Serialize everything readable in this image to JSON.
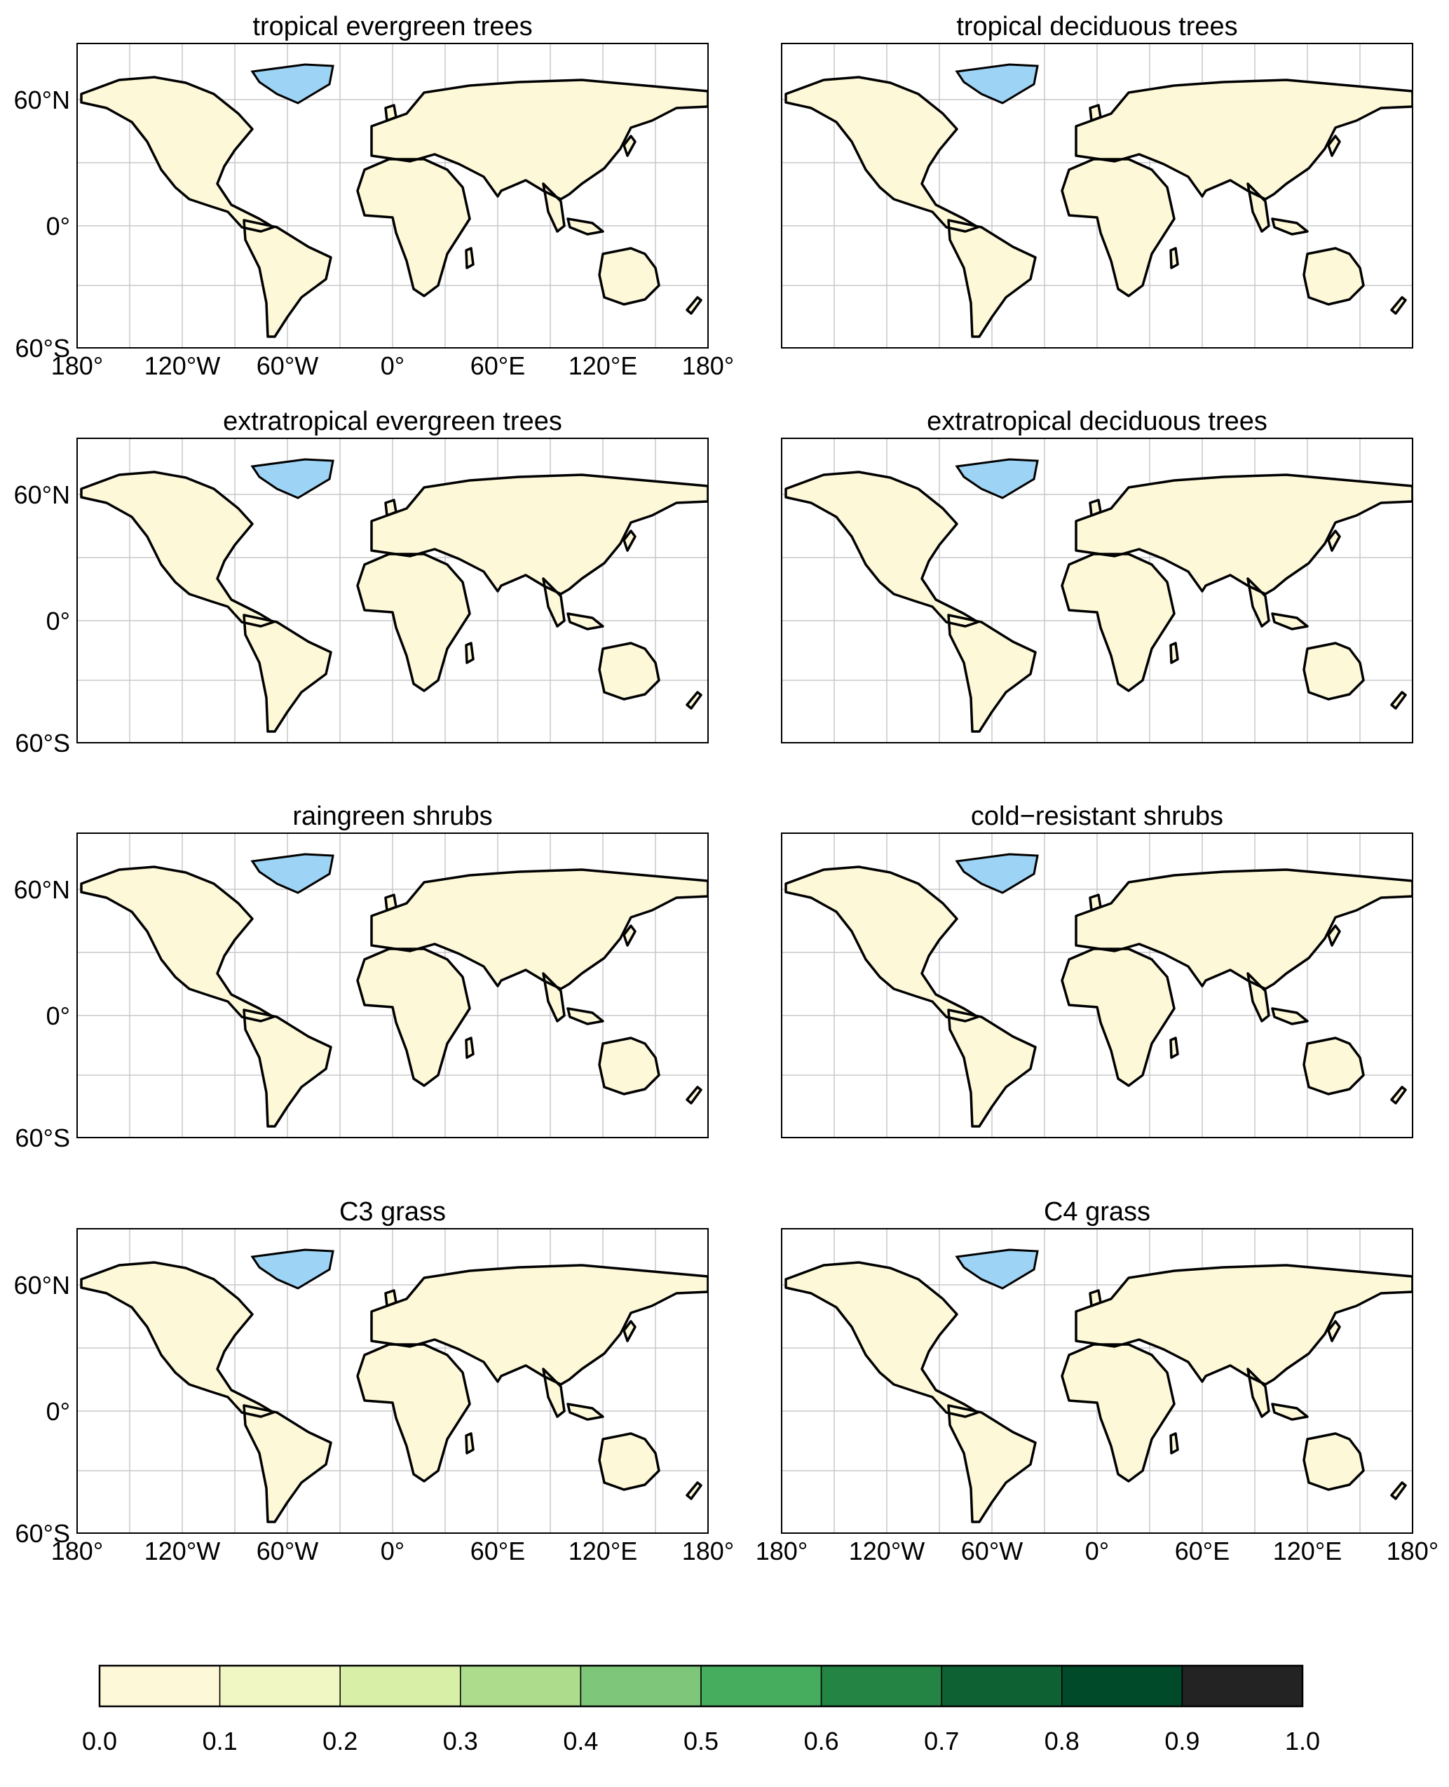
{
  "panels": [
    {
      "title": "tropical evergreen trees",
      "show_lat_labels": true,
      "show_lon_labels": true
    },
    {
      "title": "tropical deciduous trees",
      "show_lat_labels": false,
      "show_lon_labels": false
    },
    {
      "title": "extratropical evergreen trees",
      "show_lat_labels": true,
      "show_lon_labels": false
    },
    {
      "title": "extratropical deciduous trees",
      "show_lat_labels": false,
      "show_lon_labels": false
    },
    {
      "title": "raingreen shrubs",
      "show_lat_labels": true,
      "show_lon_labels": false
    },
    {
      "title": "cold−resistant shrubs",
      "show_lat_labels": false,
      "show_lon_labels": false
    },
    {
      "title": "C3 grass",
      "show_lat_labels": true,
      "show_lon_labels": true
    },
    {
      "title": "C4 grass",
      "show_lat_labels": false,
      "show_lon_labels": true
    }
  ],
  "lat_labels": [
    "60°N",
    "0°",
    "60°S"
  ],
  "lon_labels": [
    "180°",
    "120°W",
    "60°W",
    "0°",
    "60°E",
    "120°E",
    "180°"
  ],
  "colorbar": {
    "ticks": [
      "0.0",
      "0.1",
      "0.2",
      "0.3",
      "0.4",
      "0.5",
      "0.6",
      "0.7",
      "0.8",
      "0.9",
      "1.0"
    ],
    "colors": [
      "#fdf8d8",
      "#f1f7c2",
      "#d8efa8",
      "#acdc8c",
      "#7ec67a",
      "#45ad5d",
      "#238443",
      "#0d6133",
      "#004a2a",
      "#232323"
    ]
  },
  "colors": {
    "land": "#fdf8d8",
    "greenland": "#9dd3f4",
    "coast": "#000000",
    "grid": "#c8c8c8"
  }
}
